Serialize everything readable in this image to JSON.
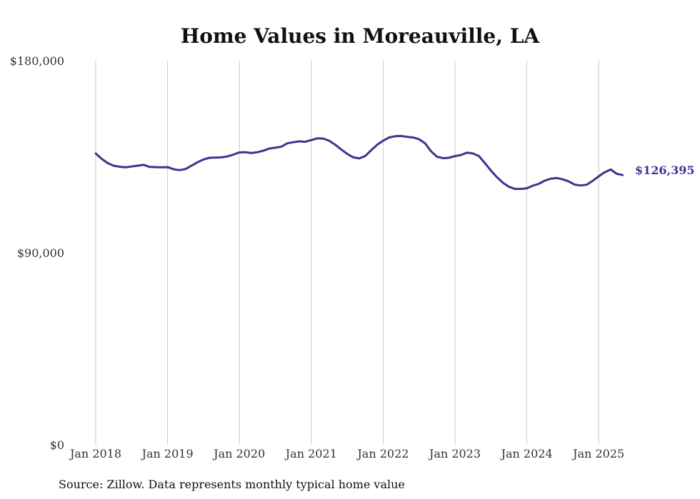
{
  "chart_data": {
    "type": "line",
    "title": "Home Values in Moreauville, LA",
    "xlabel": "",
    "ylabel": "",
    "ylim": [
      0,
      180000
    ],
    "y_ticks": [
      {
        "value": 0,
        "label": "$0"
      },
      {
        "value": 90000,
        "label": "$90,000"
      },
      {
        "value": 180000,
        "label": "$180,000"
      }
    ],
    "x_ticks": [
      {
        "value": "2018-01",
        "label": "Jan 2018"
      },
      {
        "value": "2019-01",
        "label": "Jan 2019"
      },
      {
        "value": "2020-01",
        "label": "Jan 2020"
      },
      {
        "value": "2021-01",
        "label": "Jan 2021"
      },
      {
        "value": "2022-01",
        "label": "Jan 2022"
      },
      {
        "value": "2023-01",
        "label": "Jan 2023"
      },
      {
        "value": "2024-01",
        "label": "Jan 2024"
      },
      {
        "value": "2025-01",
        "label": "Jan 2025"
      }
    ],
    "grid": "vertical",
    "line_color": "#3c3590",
    "end_label": "$126,395",
    "series": [
      {
        "x": [
          "2018-01",
          "2018-02",
          "2018-03",
          "2018-04",
          "2018-05",
          "2018-06",
          "2018-07",
          "2018-08",
          "2018-09",
          "2018-10",
          "2018-11",
          "2018-12",
          "2019-01",
          "2019-02",
          "2019-03",
          "2019-04",
          "2019-05",
          "2019-06",
          "2019-07",
          "2019-08",
          "2019-09",
          "2019-10",
          "2019-11",
          "2019-12",
          "2020-01",
          "2020-02",
          "2020-03",
          "2020-04",
          "2020-05",
          "2020-06",
          "2020-07",
          "2020-08",
          "2020-09",
          "2020-10",
          "2020-11",
          "2020-12",
          "2021-01",
          "2021-02",
          "2021-03",
          "2021-04",
          "2021-05",
          "2021-06",
          "2021-07",
          "2021-08",
          "2021-09",
          "2021-10",
          "2021-11",
          "2021-12",
          "2022-01",
          "2022-02",
          "2022-03",
          "2022-04",
          "2022-05",
          "2022-06",
          "2022-07",
          "2022-08",
          "2022-09",
          "2022-10",
          "2022-11",
          "2022-12",
          "2023-01",
          "2023-02",
          "2023-03",
          "2023-04",
          "2023-05",
          "2023-06",
          "2023-07",
          "2023-08",
          "2023-09",
          "2023-10",
          "2023-11",
          "2023-12",
          "2024-01",
          "2024-02",
          "2024-03",
          "2024-04",
          "2024-05",
          "2024-06",
          "2024-07",
          "2024-08",
          "2024-09",
          "2024-10",
          "2024-11",
          "2024-12",
          "2025-01",
          "2025-02",
          "2025-03",
          "2025-04",
          "2025-05"
        ],
        "values": [
          136500,
          134000,
          132000,
          130800,
          130300,
          130000,
          130400,
          130800,
          131200,
          130200,
          130100,
          130000,
          130100,
          129100,
          128700,
          129200,
          130800,
          132400,
          133700,
          134500,
          134600,
          134700,
          135100,
          136000,
          137000,
          137100,
          136700,
          137100,
          137800,
          138800,
          139200,
          139700,
          141300,
          141800,
          142200,
          142000,
          142800,
          143600,
          143500,
          142500,
          140600,
          138400,
          136300,
          134700,
          134200,
          135300,
          138000,
          140600,
          142500,
          144000,
          144600,
          144700,
          144300,
          144000,
          143200,
          141300,
          137500,
          135000,
          134300,
          134500,
          135300,
          135800,
          136900,
          136500,
          135300,
          132000,
          128500,
          125400,
          122800,
          120900,
          119900,
          119900,
          120200,
          121400,
          122300,
          123800,
          124700,
          125000,
          124400,
          123400,
          121900,
          121500,
          121900,
          123700,
          125800,
          127700,
          129000,
          127000,
          126395
        ]
      }
    ]
  },
  "source_text": "Source: Zillow. Data represents monthly typical home value"
}
